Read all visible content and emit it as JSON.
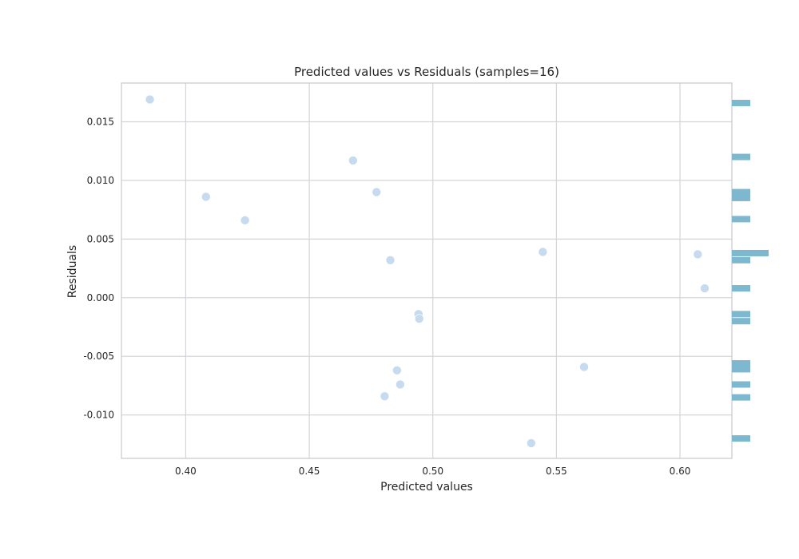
{
  "chart_data": {
    "type": "scatter",
    "title": "Predicted values vs Residuals (samples=16)",
    "xlabel": "Predicted values",
    "ylabel": "Residuals",
    "xlim": [
      0.374,
      0.621
    ],
    "ylim": [
      -0.0137,
      0.0183
    ],
    "xticks": [
      0.4,
      0.45,
      0.5,
      0.55,
      0.6
    ],
    "xtick_labels": [
      "0.40",
      "0.45",
      "0.50",
      "0.55",
      "0.60"
    ],
    "yticks": [
      -0.01,
      -0.005,
      0.0,
      0.005,
      0.01,
      0.015
    ],
    "ytick_labels": [
      "-0.010",
      "-0.005",
      "0.000",
      "0.005",
      "0.010",
      "0.015"
    ],
    "grid": true,
    "point_color": "#c6dbef",
    "hist_color": "#7eb8cf",
    "points": [
      {
        "x": 0.3855,
        "y": 0.0169
      },
      {
        "x": 0.4082,
        "y": 0.0086
      },
      {
        "x": 0.424,
        "y": 0.0066
      },
      {
        "x": 0.4677,
        "y": 0.0117
      },
      {
        "x": 0.4772,
        "y": 0.009
      },
      {
        "x": 0.4828,
        "y": 0.0032
      },
      {
        "x": 0.4942,
        "y": -0.0014
      },
      {
        "x": 0.4945,
        "y": -0.0018
      },
      {
        "x": 0.4855,
        "y": -0.0062
      },
      {
        "x": 0.4868,
        "y": -0.0074
      },
      {
        "x": 0.4805,
        "y": -0.0084
      },
      {
        "x": 0.5445,
        "y": 0.0039
      },
      {
        "x": 0.5612,
        "y": -0.0059
      },
      {
        "x": 0.5398,
        "y": -0.0124
      },
      {
        "x": 0.6072,
        "y": 0.0037
      },
      {
        "x": 0.61,
        "y": 0.0008
      }
    ],
    "residual_histogram": [
      {
        "center": 0.0166,
        "count": 1
      },
      {
        "center": 0.012,
        "count": 1
      },
      {
        "center": 0.009,
        "count": 1
      },
      {
        "center": 0.0085,
        "count": 1
      },
      {
        "center": 0.0067,
        "count": 1
      },
      {
        "center": 0.0038,
        "count": 2
      },
      {
        "center": 0.0032,
        "count": 1
      },
      {
        "center": 0.0008,
        "count": 1
      },
      {
        "center": -0.0014,
        "count": 1
      },
      {
        "center": -0.002,
        "count": 1
      },
      {
        "center": -0.0056,
        "count": 1
      },
      {
        "center": -0.0061,
        "count": 1
      },
      {
        "center": -0.0074,
        "count": 1
      },
      {
        "center": -0.0085,
        "count": 1
      },
      {
        "center": -0.012,
        "count": 1
      }
    ]
  }
}
